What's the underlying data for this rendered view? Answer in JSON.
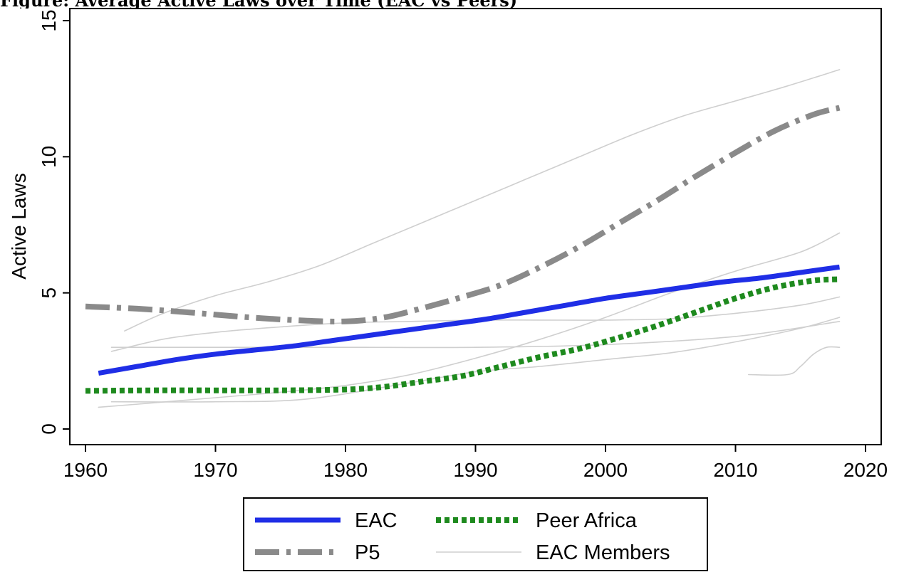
{
  "figure": {
    "title": "Figure: Average Active Laws over Time (EAC vs Peers)"
  },
  "chart_data": {
    "type": "line",
    "title": "",
    "xlabel": "",
    "ylabel": "Active Laws",
    "xlim": [
      1960,
      2020
    ],
    "ylim": [
      0,
      15
    ],
    "xticks": [
      1960,
      1970,
      1980,
      1990,
      2000,
      2010,
      2020
    ],
    "yticks": [
      0,
      5,
      10,
      15
    ],
    "grid": false,
    "legend_position": "bottom-outside",
    "series": [
      {
        "name": "EAC",
        "style": "solid-thick",
        "color": "#1f2ee6",
        "x": [
          1961,
          1964,
          1967,
          1970,
          1973,
          1976,
          1979,
          1982,
          1985,
          1988,
          1991,
          1994,
          1997,
          2000,
          2003,
          2006,
          2009,
          2012,
          2015,
          2018
        ],
        "y": [
          2.05,
          2.3,
          2.55,
          2.75,
          2.9,
          3.05,
          3.25,
          3.45,
          3.65,
          3.85,
          4.05,
          4.3,
          4.55,
          4.8,
          5.0,
          5.2,
          5.4,
          5.55,
          5.75,
          5.95
        ]
      },
      {
        "name": "P5",
        "style": "dash-dot",
        "color": "#8a8a8a",
        "x": [
          1960,
          1964,
          1968,
          1972,
          1976,
          1980,
          1983,
          1986,
          1989,
          1992,
          1995,
          1998,
          2001,
          2004,
          2007,
          2010,
          2013,
          2016,
          2018
        ],
        "y": [
          4.5,
          4.42,
          4.28,
          4.12,
          4.0,
          3.95,
          4.1,
          4.45,
          4.85,
          5.3,
          5.95,
          6.7,
          7.55,
          8.4,
          9.3,
          10.15,
          10.95,
          11.55,
          11.8
        ]
      },
      {
        "name": "Peer Africa",
        "style": "dotted-thick",
        "color": "#1e8a1e",
        "x": [
          1960,
          1965,
          1970,
          1975,
          1980,
          1983,
          1986,
          1989,
          1992,
          1995,
          1998,
          2001,
          2004,
          2007,
          2010,
          2013,
          2016,
          2018
        ],
        "y": [
          1.4,
          1.42,
          1.42,
          1.42,
          1.45,
          1.55,
          1.75,
          1.95,
          2.3,
          2.65,
          2.95,
          3.35,
          3.8,
          4.3,
          4.8,
          5.2,
          5.45,
          5.5
        ]
      },
      {
        "name": "EAC Members",
        "style": "thin",
        "color": "#cfcfcf",
        "lines": [
          {
            "x": [
              1963,
              1966,
              1970,
              1974,
              1978,
              1982,
              1986,
              1990,
              1994,
              1998,
              2002,
              2006,
              2010,
              2014,
              2018
            ],
            "y": [
              3.6,
              4.25,
              4.9,
              5.4,
              6.0,
              6.8,
              7.6,
              8.4,
              9.2,
              10.0,
              10.8,
              11.5,
              12.05,
              12.6,
              13.2
            ]
          },
          {
            "x": [
              1962,
              1966,
              1970,
              1975,
              1980,
              1985,
              1990,
              1995,
              2000,
              2005,
              2010,
              2015,
              2018
            ],
            "y": [
              2.85,
              3.3,
              3.55,
              3.75,
              3.9,
              3.95,
              4.0,
              4.0,
              4.0,
              4.05,
              4.25,
              4.55,
              4.85
            ]
          },
          {
            "x": [
              1962,
              1970,
              1980,
              1990,
              2000,
              2010,
              2018
            ],
            "y": [
              3.0,
              3.0,
              3.0,
              3.0,
              3.1,
              3.4,
              3.95
            ]
          },
          {
            "x": [
              1961,
              1965,
              1970,
              1975,
              1980,
              1985,
              1990,
              1995,
              2000,
              2005,
              2010,
              2015,
              2018
            ],
            "y": [
              0.8,
              0.95,
              1.15,
              1.35,
              1.6,
              2.0,
              2.6,
              3.3,
              4.1,
              5.0,
              5.8,
              6.5,
              7.2
            ]
          },
          {
            "x": [
              1962,
              1970,
              1977,
              1985,
              1990,
              1995,
              2000,
              2005,
              2010,
              2015,
              2018
            ],
            "y": [
              1.0,
              1.0,
              1.1,
              1.7,
              2.1,
              2.3,
              2.55,
              2.8,
              3.2,
              3.7,
              4.1
            ]
          },
          {
            "x": [
              2011,
              2014,
              2015,
              2016,
              2017,
              2018
            ],
            "y": [
              2.0,
              2.0,
              2.3,
              2.75,
              3.0,
              3.0
            ]
          }
        ]
      }
    ]
  }
}
